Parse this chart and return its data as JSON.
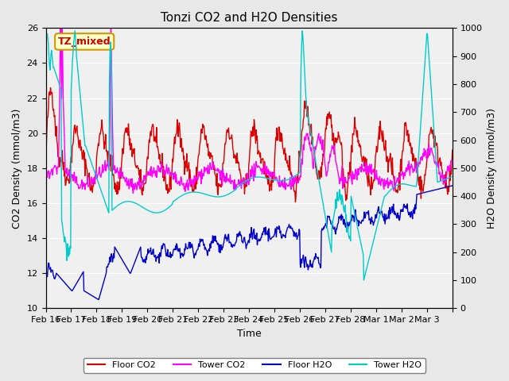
{
  "title": "Tonzi CO2 and H2O Densities",
  "xlabel": "Time",
  "ylabel_left": "CO2 Density (mmol/m3)",
  "ylabel_right": "H2O Density (mmol/m3)",
  "ylim_left": [
    10,
    26
  ],
  "ylim_right": [
    0,
    1000
  ],
  "yticks_left": [
    10,
    12,
    14,
    16,
    18,
    20,
    22,
    24,
    26
  ],
  "yticks_right": [
    0,
    100,
    200,
    300,
    400,
    500,
    600,
    700,
    800,
    900,
    1000
  ],
  "xtick_positions": [
    0,
    1,
    2,
    3,
    4,
    5,
    6,
    7,
    8,
    9,
    10,
    11,
    12,
    13,
    14,
    15,
    16
  ],
  "xtick_labels": [
    "Feb 16",
    "Feb 17",
    "Feb 18",
    "Feb 19",
    "Feb 20",
    "Feb 21",
    "Feb 22",
    "Feb 23",
    "Feb 24",
    "Feb 25",
    "Feb 26",
    "Feb 27",
    "Feb 28",
    "Mar 1",
    "Mar 2",
    "Mar 3",
    ""
  ],
  "annotation_text": "TZ_mixed",
  "annotation_color": "#cc0000",
  "annotation_bg": "#ffffcc",
  "annotation_border": "#cc9900",
  "colors": {
    "floor_co2": "#dd0000",
    "tower_co2": "#ff00ff",
    "floor_h2o": "#0000cc",
    "tower_h2o": "#00cccc"
  },
  "legend_labels": [
    "Floor CO2",
    "Tower CO2",
    "Floor H2O",
    "Tower H2O"
  ],
  "bg_color": "#e8e8e8",
  "plot_bg_color": "#f0f0f0",
  "linewidth": 1.0
}
